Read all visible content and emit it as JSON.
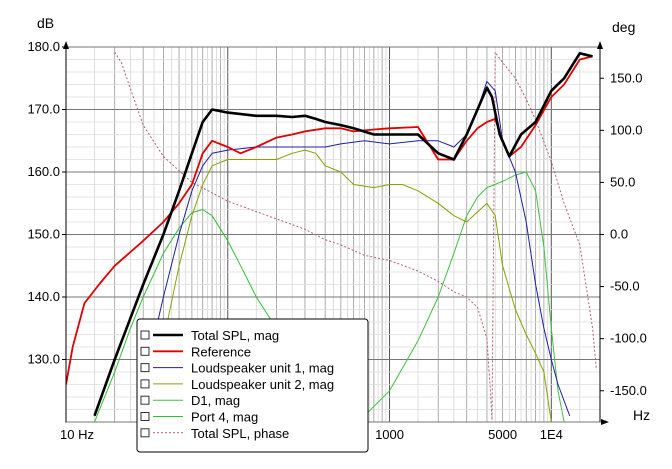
{
  "chart_data": {
    "type": "line",
    "title": "",
    "left_unit": "dB",
    "right_unit": "deg",
    "x_unit": "Hz",
    "x_scale": "log",
    "xlim": [
      10,
      20000
    ],
    "ylim": [
      120,
      180
    ],
    "y2lim": [
      -180,
      180
    ],
    "grid": true,
    "legend_position": "bottom-left",
    "x_ticks": [
      {
        "value": 10,
        "label": "10 Hz"
      },
      {
        "value": 1000,
        "label": "1000"
      },
      {
        "value": 5000,
        "label": "5000"
      },
      {
        "value": 10000,
        "label": "1E4"
      }
    ],
    "y_ticks": [
      {
        "value": 130,
        "label": "130.0"
      },
      {
        "value": 140,
        "label": "140.0"
      },
      {
        "value": 150,
        "label": "150.0"
      },
      {
        "value": 160,
        "label": "160.0"
      },
      {
        "value": 170,
        "label": "170.0"
      },
      {
        "value": 180,
        "label": "180.0"
      }
    ],
    "y2_ticks": [
      {
        "value": 150,
        "label": "150.0"
      },
      {
        "value": 100,
        "label": "100.0"
      },
      {
        "value": 50,
        "label": "50.0"
      },
      {
        "value": 0,
        "label": "0.0"
      },
      {
        "value": -50,
        "label": "-50.0"
      },
      {
        "value": -100,
        "label": "-100.0"
      },
      {
        "value": -150,
        "label": "-150.0"
      }
    ],
    "series": [
      {
        "name": "Total SPL, mag",
        "color": "#000000",
        "width": 2.6,
        "dash": "",
        "axis": "left",
        "points": [
          [
            15,
            121
          ],
          [
            20,
            130
          ],
          [
            30,
            142
          ],
          [
            40,
            150
          ],
          [
            50,
            157
          ],
          [
            60,
            163
          ],
          [
            70,
            168
          ],
          [
            80,
            170
          ],
          [
            100,
            169.5
          ],
          [
            150,
            169
          ],
          [
            200,
            169
          ],
          [
            250,
            168.8
          ],
          [
            300,
            169
          ],
          [
            350,
            168.5
          ],
          [
            400,
            168
          ],
          [
            500,
            167.5
          ],
          [
            600,
            167
          ],
          [
            800,
            166
          ],
          [
            1000,
            166
          ],
          [
            1500,
            166
          ],
          [
            2000,
            163
          ],
          [
            2500,
            162
          ],
          [
            3000,
            166
          ],
          [
            3500,
            170
          ],
          [
            4000,
            173.5
          ],
          [
            4300,
            172
          ],
          [
            4800,
            166
          ],
          [
            5500,
            162.5
          ],
          [
            6500,
            166
          ],
          [
            8000,
            168
          ],
          [
            10000,
            173
          ],
          [
            12000,
            175
          ],
          [
            15000,
            179
          ],
          [
            18000,
            178.5
          ]
        ]
      },
      {
        "name": "Reference",
        "color": "#e00000",
        "width": 1.8,
        "dash": "",
        "axis": "left",
        "points": [
          [
            10,
            126
          ],
          [
            11,
            132
          ],
          [
            13,
            139
          ],
          [
            16,
            142
          ],
          [
            20,
            145
          ],
          [
            30,
            149
          ],
          [
            40,
            152
          ],
          [
            50,
            155
          ],
          [
            60,
            158
          ],
          [
            70,
            163
          ],
          [
            80,
            165
          ],
          [
            100,
            164
          ],
          [
            120,
            163
          ],
          [
            150,
            164
          ],
          [
            200,
            165.5
          ],
          [
            250,
            166
          ],
          [
            300,
            166.5
          ],
          [
            400,
            167
          ],
          [
            500,
            167
          ],
          [
            600,
            166.5
          ],
          [
            800,
            166.8
          ],
          [
            1000,
            167
          ],
          [
            1500,
            167.2
          ],
          [
            2000,
            162
          ],
          [
            2500,
            162
          ],
          [
            3000,
            165
          ],
          [
            3500,
            167
          ],
          [
            4000,
            168
          ],
          [
            4500,
            168.5
          ],
          [
            5000,
            165
          ],
          [
            5500,
            162.5
          ],
          [
            6500,
            164
          ],
          [
            8000,
            167.5
          ],
          [
            10000,
            172
          ],
          [
            12000,
            174
          ],
          [
            15000,
            178
          ],
          [
            18000,
            178.5
          ]
        ]
      },
      {
        "name": "Loudspeaker unit 1, mag",
        "color": "#2020a0",
        "width": 1,
        "dash": "",
        "axis": "left",
        "points": [
          [
            30,
            126
          ],
          [
            40,
            140
          ],
          [
            50,
            150
          ],
          [
            60,
            157
          ],
          [
            70,
            161
          ],
          [
            80,
            163
          ],
          [
            100,
            163.5
          ],
          [
            150,
            164
          ],
          [
            200,
            164
          ],
          [
            300,
            164
          ],
          [
            400,
            164
          ],
          [
            500,
            164.5
          ],
          [
            700,
            165
          ],
          [
            1000,
            164.5
          ],
          [
            1500,
            165
          ],
          [
            2000,
            165
          ],
          [
            2500,
            164
          ],
          [
            3000,
            166
          ],
          [
            3500,
            170
          ],
          [
            4000,
            174.5
          ],
          [
            4500,
            173
          ],
          [
            5000,
            165
          ],
          [
            6000,
            160
          ],
          [
            7000,
            152
          ],
          [
            8000,
            142
          ],
          [
            9000,
            135
          ],
          [
            10000,
            130
          ],
          [
            11000,
            126
          ],
          [
            13000,
            121
          ]
        ]
      },
      {
        "name": "Loudspeaker unit 2, mag",
        "color": "#8aa000",
        "width": 1,
        "dash": "",
        "axis": "left",
        "points": [
          [
            30,
            122
          ],
          [
            40,
            133
          ],
          [
            50,
            145
          ],
          [
            60,
            153
          ],
          [
            70,
            158
          ],
          [
            80,
            161
          ],
          [
            100,
            162
          ],
          [
            150,
            162
          ],
          [
            200,
            162
          ],
          [
            250,
            163
          ],
          [
            300,
            163.5
          ],
          [
            350,
            163
          ],
          [
            400,
            161
          ],
          [
            500,
            160
          ],
          [
            600,
            158
          ],
          [
            800,
            157.5
          ],
          [
            1000,
            158
          ],
          [
            1200,
            158
          ],
          [
            1500,
            157
          ],
          [
            2000,
            155
          ],
          [
            2500,
            153
          ],
          [
            3000,
            152
          ],
          [
            4000,
            155
          ],
          [
            4500,
            153
          ],
          [
            5000,
            145
          ],
          [
            6000,
            138
          ],
          [
            7000,
            134
          ],
          [
            8000,
            131
          ],
          [
            9000,
            128
          ],
          [
            10000,
            120
          ]
        ]
      },
      {
        "name": "D1, mag",
        "color": "#40c040",
        "width": 1,
        "dash": "",
        "axis": "left",
        "points": [
          [
            700,
            121
          ],
          [
            1000,
            125
          ],
          [
            1500,
            133
          ],
          [
            2000,
            140
          ],
          [
            2500,
            147
          ],
          [
            3000,
            153
          ],
          [
            3500,
            156
          ],
          [
            4000,
            157.5
          ],
          [
            5000,
            158.5
          ],
          [
            6000,
            159.5
          ],
          [
            7000,
            160
          ],
          [
            8000,
            157
          ],
          [
            9000,
            148
          ],
          [
            10000,
            135
          ],
          [
            11000,
            125
          ],
          [
            12000,
            120
          ]
        ]
      },
      {
        "name": "Port 4, mag",
        "color": "#30c030",
        "width": 1,
        "dash": "",
        "axis": "left",
        "points": [
          [
            15,
            120
          ],
          [
            20,
            128
          ],
          [
            25,
            135
          ],
          [
            30,
            140
          ],
          [
            40,
            147
          ],
          [
            50,
            151
          ],
          [
            60,
            153.5
          ],
          [
            70,
            154
          ],
          [
            80,
            153
          ],
          [
            100,
            149
          ],
          [
            120,
            145
          ],
          [
            150,
            140
          ],
          [
            200,
            135
          ],
          [
            250,
            130
          ],
          [
            300,
            126
          ],
          [
            350,
            122
          ],
          [
            400,
            120
          ]
        ]
      },
      {
        "name": "Total SPL, phase",
        "color": "#b06070",
        "width": 1,
        "dash": "2,2",
        "axis": "right",
        "points": [
          [
            20,
            175
          ],
          [
            22,
            165
          ],
          [
            25,
            140
          ],
          [
            30,
            105
          ],
          [
            40,
            75
          ],
          [
            60,
            50
          ],
          [
            80,
            40
          ],
          [
            100,
            32
          ],
          [
            150,
            22
          ],
          [
            200,
            15
          ],
          [
            300,
            5
          ],
          [
            400,
            -5
          ],
          [
            500,
            -10
          ],
          [
            700,
            -20
          ],
          [
            1000,
            -25
          ],
          [
            1500,
            -35
          ],
          [
            2000,
            -45
          ],
          [
            2500,
            -55
          ],
          [
            3000,
            -60
          ],
          [
            3500,
            -70
          ],
          [
            4000,
            -100
          ],
          [
            4200,
            -150
          ],
          [
            4300,
            -178
          ],
          [
            4500,
            175
          ],
          [
            5000,
            165
          ],
          [
            6000,
            150
          ],
          [
            7000,
            130
          ],
          [
            8000,
            110
          ],
          [
            10000,
            70
          ],
          [
            12000,
            30
          ],
          [
            15000,
            -10
          ],
          [
            18000,
            -90
          ],
          [
            19000,
            -130
          ]
        ]
      }
    ]
  }
}
